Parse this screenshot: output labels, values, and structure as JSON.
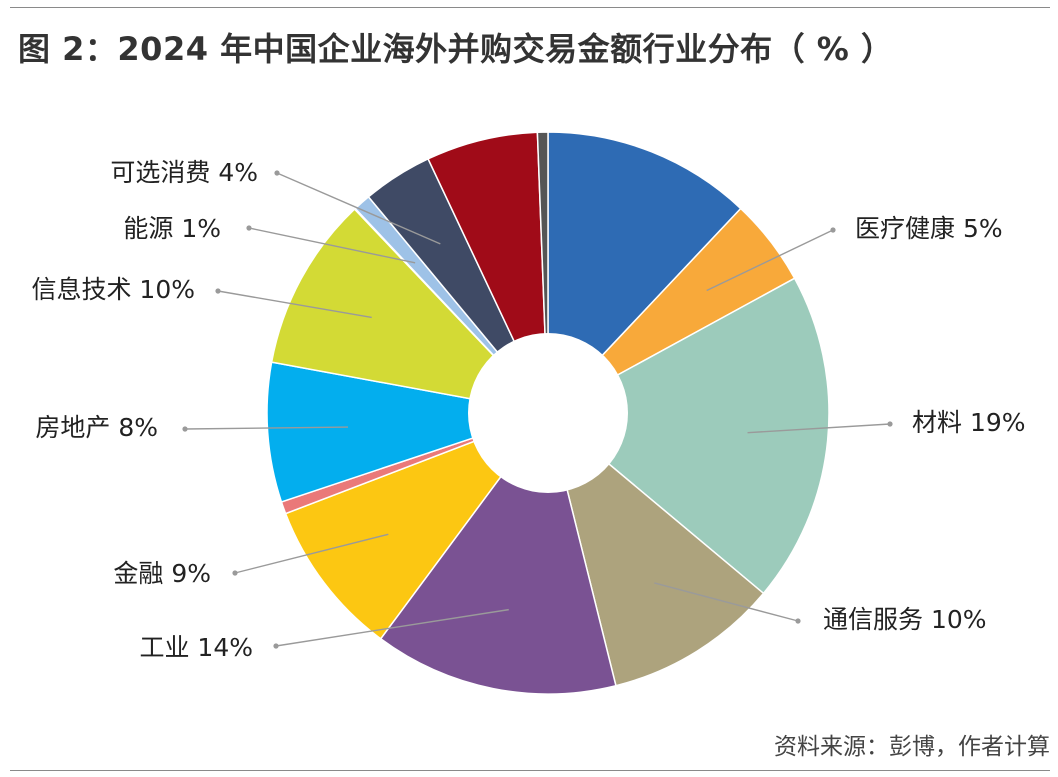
{
  "title": "图 2：2024 年中国企业海外并购交易金额行业分布（ % ）",
  "source": "资料来源：彭博，作者计算",
  "chart_data": {
    "type": "pie",
    "title": "图 2：2024 年中国企业海外并购交易金额行业分布（ % ）",
    "donut": true,
    "start_angle_deg": 0,
    "direction": "clockwise",
    "slices": [
      {
        "name": "",
        "value": 12,
        "color": "#2e6bb4"
      },
      {
        "name": "医疗健康",
        "value": 5,
        "label": "医疗健康 5%",
        "color": "#f8a93a"
      },
      {
        "name": "材料",
        "value": 19,
        "label": "材料 19%",
        "color": "#9ccbbb"
      },
      {
        "name": "通信服务",
        "value": 10,
        "label": "通信服务 10%",
        "color": "#ada37d"
      },
      {
        "name": "工业",
        "value": 14,
        "label": "工业 14%",
        "color": "#7a5293"
      },
      {
        "name": "金融",
        "value": 9,
        "label": "金融 9%",
        "color": "#fcc712"
      },
      {
        "name": "",
        "value": 0.7,
        "color": "#ea7979"
      },
      {
        "name": "房地产",
        "value": 8,
        "label": "房地产 8%",
        "color": "#03aeee"
      },
      {
        "name": "信息技术",
        "value": 10,
        "label": "信息技术 10%",
        "color": "#d3da35"
      },
      {
        "name": "",
        "value": 0.05,
        "color": "#ffffff"
      },
      {
        "name": "能源",
        "value": 1,
        "label": "能源 1%",
        "color": "#9ec2e7"
      },
      {
        "name": "可选消费",
        "value": 4,
        "label": "可选消费 4%",
        "color": "#3f4a65"
      },
      {
        "name": "",
        "value": 6.4,
        "color": "#a00b18"
      },
      {
        "name": "",
        "value": 0.6,
        "color": "#555555"
      }
    ]
  }
}
